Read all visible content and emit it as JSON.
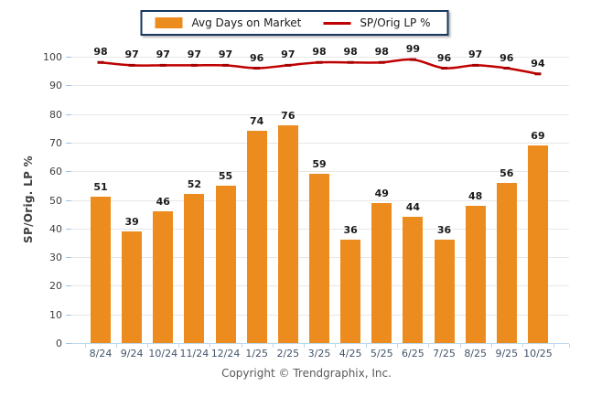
{
  "legend": {
    "bar_label": "Avg Days on Market",
    "line_label": "SP/Orig LP %"
  },
  "chart_data": {
    "type": "bar",
    "categories": [
      "8/24",
      "9/24",
      "10/24",
      "11/24",
      "12/24",
      "1/25",
      "2/25",
      "3/25",
      "4/25",
      "5/25",
      "6/25",
      "7/25",
      "8/25",
      "9/25",
      "10/25"
    ],
    "series": [
      {
        "name": "Avg Days on Market",
        "type": "bar",
        "color": "#ED8C1E",
        "values": [
          51,
          39,
          46,
          52,
          55,
          74,
          76,
          59,
          36,
          49,
          44,
          36,
          48,
          56,
          69
        ]
      },
      {
        "name": "SP/Orig LP %",
        "type": "line",
        "color": "#C00000",
        "marker_color": "#A50000",
        "values": [
          98,
          97,
          97,
          97,
          97,
          96,
          97,
          98,
          98,
          98,
          99,
          96,
          97,
          96,
          94
        ]
      }
    ],
    "title": "",
    "xlabel": "",
    "ylabel": "SP/Orig. LP %",
    "ylim": [
      0,
      100
    ],
    "ytick_step": 10,
    "grid": true,
    "legend_position": "top-center",
    "footer": "Copyright © Trendgraphix, Inc.",
    "colors": {
      "gridline": "#e7e7e7",
      "axis": "#BDD7EE",
      "value_label": "#1a1a1a",
      "x_label": "#44546A",
      "y_label": "#404040"
    }
  }
}
